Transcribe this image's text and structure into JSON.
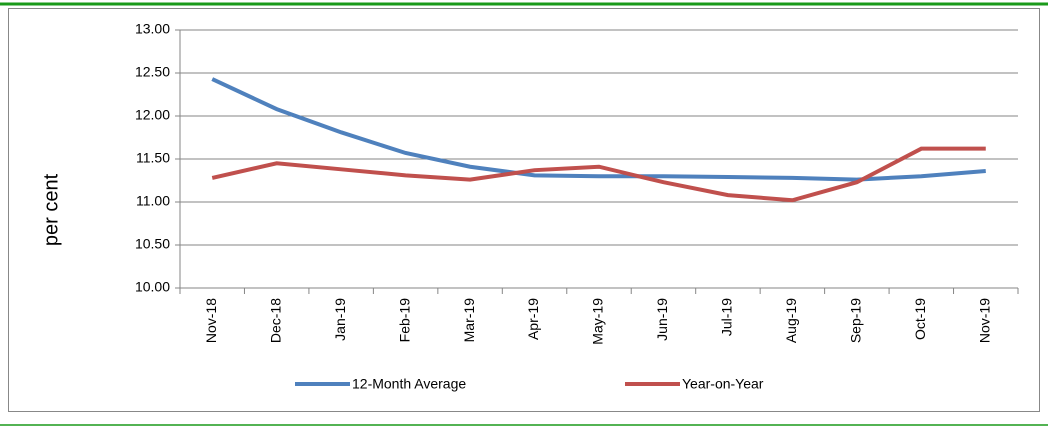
{
  "chart_data": {
    "type": "line",
    "y_label": "per  cent",
    "categories": [
      "Nov-18",
      "Dec-18",
      "Jan-19",
      "Feb-19",
      "Mar-19",
      "Apr-19",
      "May-19",
      "Jun-19",
      "Jul-19",
      "Aug-19",
      "Sep-19",
      "Oct-19",
      "Nov-19"
    ],
    "series": [
      {
        "name": "12-Month Average",
        "color": "#4f81bd",
        "values": [
          12.43,
          12.08,
          11.81,
          11.57,
          11.41,
          11.31,
          11.3,
          11.3,
          11.29,
          11.28,
          11.26,
          11.3,
          11.36
        ]
      },
      {
        "name": "Year-on-Year",
        "color": "#c0504d",
        "values": [
          11.28,
          11.45,
          11.38,
          11.31,
          11.26,
          11.37,
          11.41,
          11.23,
          11.08,
          11.02,
          11.23,
          11.62,
          11.62
        ]
      }
    ],
    "ylim": [
      10,
      13
    ],
    "yticks": [
      {
        "value": 10,
        "label": "10.00"
      },
      {
        "value": 10.5,
        "label": "10.50"
      },
      {
        "value": 11,
        "label": "11.00"
      },
      {
        "value": 11.5,
        "label": "11.50"
      },
      {
        "value": 12,
        "label": "12.00"
      },
      {
        "value": 12.5,
        "label": "12.50"
      },
      {
        "value": 13,
        "label": "13.00"
      }
    ],
    "grid": true,
    "legend": "bottom"
  }
}
